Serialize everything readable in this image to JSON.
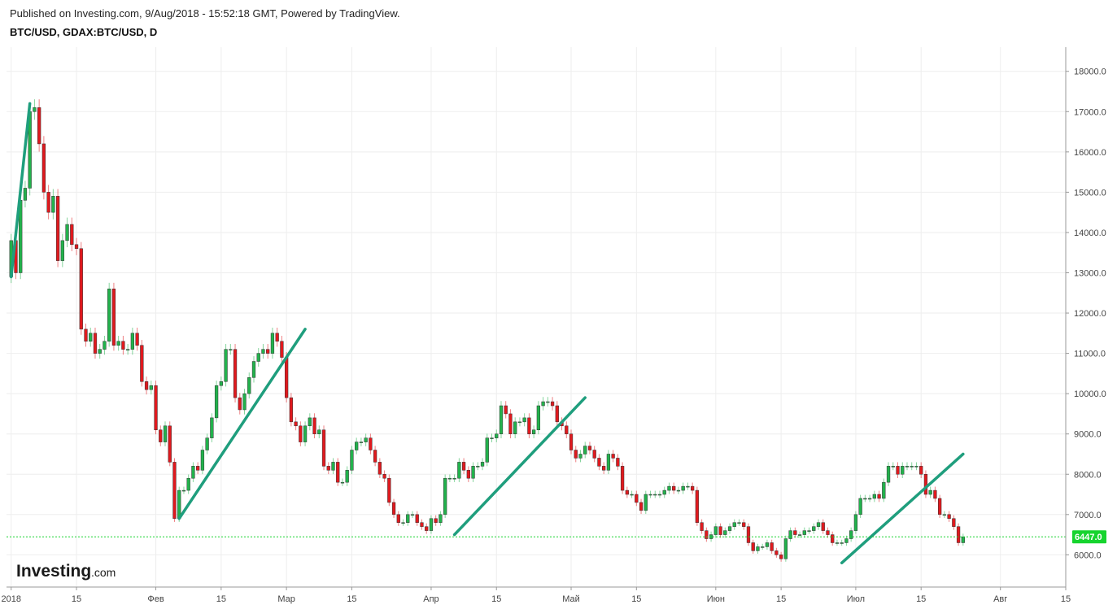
{
  "header": {
    "published": "Published on Investing.com, 9/Aug/2018 - 15:52:18 GMT, Powered by TradingView.",
    "symbol": "BTC/USD, GDAX:BTC/USD, D"
  },
  "logo": {
    "text": "Investing",
    "suffix": ".com"
  },
  "chart_data": {
    "type": "candlestick",
    "symbol": "BTC/USD",
    "exchange": "GDAX",
    "interval": "D",
    "ylim": [
      5200,
      18600
    ],
    "y_ticks": [
      6000,
      7000,
      8000,
      9000,
      10000,
      11000,
      12000,
      13000,
      14000,
      15000,
      16000,
      17000,
      18000
    ],
    "y_tick_labels": [
      "6000.0",
      "7000.0",
      "8000.0",
      "9000.0",
      "10000.0",
      "11000.0",
      "12000.0",
      "13000.0",
      "14000.0",
      "15000.0",
      "16000.0",
      "17000.0",
      "18000.0"
    ],
    "x_start": "2017-12-31",
    "x_end": "2018-08-15",
    "x_ticks": [
      {
        "date": "2018-01-01",
        "label": "2018"
      },
      {
        "date": "2018-01-15",
        "label": "15"
      },
      {
        "date": "2018-02-01",
        "label": "Фев"
      },
      {
        "date": "2018-02-15",
        "label": "15"
      },
      {
        "date": "2018-03-01",
        "label": "Мар"
      },
      {
        "date": "2018-03-15",
        "label": "15"
      },
      {
        "date": "2018-04-01",
        "label": "Апр"
      },
      {
        "date": "2018-04-15",
        "label": "15"
      },
      {
        "date": "2018-05-01",
        "label": "Май"
      },
      {
        "date": "2018-05-15",
        "label": "15"
      },
      {
        "date": "2018-06-01",
        "label": "Июн"
      },
      {
        "date": "2018-06-15",
        "label": "15"
      },
      {
        "date": "2018-07-01",
        "label": "Июл"
      },
      {
        "date": "2018-07-15",
        "label": "15"
      },
      {
        "date": "2018-08-01",
        "label": "Авг"
      },
      {
        "date": "2018-08-15",
        "label": "15"
      }
    ],
    "last_price": 6447.0,
    "last_price_label": "6447.0",
    "colors": {
      "up": "#22b24c",
      "down": "#e0191e",
      "trend": "#1f9e7d",
      "grid": "#eeeeee",
      "last": "#16d42e"
    },
    "grid": true,
    "closes": [
      13800,
      13000,
      14800,
      15100,
      17000,
      17100,
      16200,
      15000,
      14500,
      14900,
      13300,
      13800,
      14200,
      13700,
      13600,
      11600,
      11300,
      11500,
      11000,
      11100,
      11300,
      12600,
      11200,
      11300,
      11100,
      11100,
      11500,
      11200,
      10300,
      10100,
      10200,
      9100,
      8800,
      9200,
      8300,
      6900,
      7600,
      7600,
      7900,
      8200,
      8100,
      8600,
      8900,
      9400,
      10200,
      10300,
      11100,
      11100,
      9900,
      9600,
      10000,
      10400,
      10800,
      11000,
      11100,
      11000,
      11500,
      11300,
      10900,
      9900,
      9300,
      9200,
      8800,
      9200,
      9400,
      9000,
      9100,
      8200,
      8100,
      8300,
      7800,
      7800,
      8100,
      8600,
      8800,
      8800,
      8900,
      8600,
      8300,
      8000,
      7900,
      7300,
      7000,
      6800,
      6800,
      7000,
      7000,
      6800,
      6700,
      6600,
      6900,
      6800,
      7000,
      7900,
      7900,
      7900,
      8300,
      8100,
      7900,
      8200,
      8200,
      8300,
      8900,
      8900,
      9000,
      9700,
      9500,
      9000,
      9300,
      9300,
      9400,
      9000,
      9100,
      9700,
      9800,
      9800,
      9700,
      9300,
      9200,
      9000,
      8600,
      8400,
      8500,
      8700,
      8600,
      8400,
      8200,
      8100,
      8500,
      8400,
      8200,
      7600,
      7500,
      7500,
      7300,
      7100,
      7500,
      7500,
      7500,
      7500,
      7600,
      7700,
      7600,
      7600,
      7700,
      7700,
      7600,
      6800,
      6600,
      6400,
      6500,
      6700,
      6500,
      6600,
      6700,
      6800,
      6800,
      6700,
      6300,
      6100,
      6200,
      6200,
      6300,
      6100,
      6000,
      5900,
      6400,
      6600,
      6500,
      6500,
      6600,
      6600,
      6700,
      6800,
      6600,
      6500,
      6300,
      6300,
      6300,
      6400,
      6600,
      7000,
      7400,
      7400,
      7400,
      7500,
      7400,
      7800,
      8200,
      8200,
      8000,
      8200,
      8200,
      8200,
      8200,
      8000,
      7500,
      7600,
      7400,
      7000,
      7000,
      6900,
      6700,
      6300,
      6447
    ],
    "trendlines": [
      {
        "from": {
          "date": "2018-01-01",
          "price": 12900
        },
        "to": {
          "date": "2018-01-05",
          "price": 17200
        }
      },
      {
        "from": {
          "date": "2018-02-06",
          "price": 6900
        },
        "to": {
          "date": "2018-03-05",
          "price": 11600
        }
      },
      {
        "from": {
          "date": "2018-04-06",
          "price": 6500
        },
        "to": {
          "date": "2018-05-04",
          "price": 9900
        }
      },
      {
        "from": {
          "date": "2018-06-28",
          "price": 5800
        },
        "to": {
          "date": "2018-07-24",
          "price": 8500
        }
      }
    ]
  }
}
